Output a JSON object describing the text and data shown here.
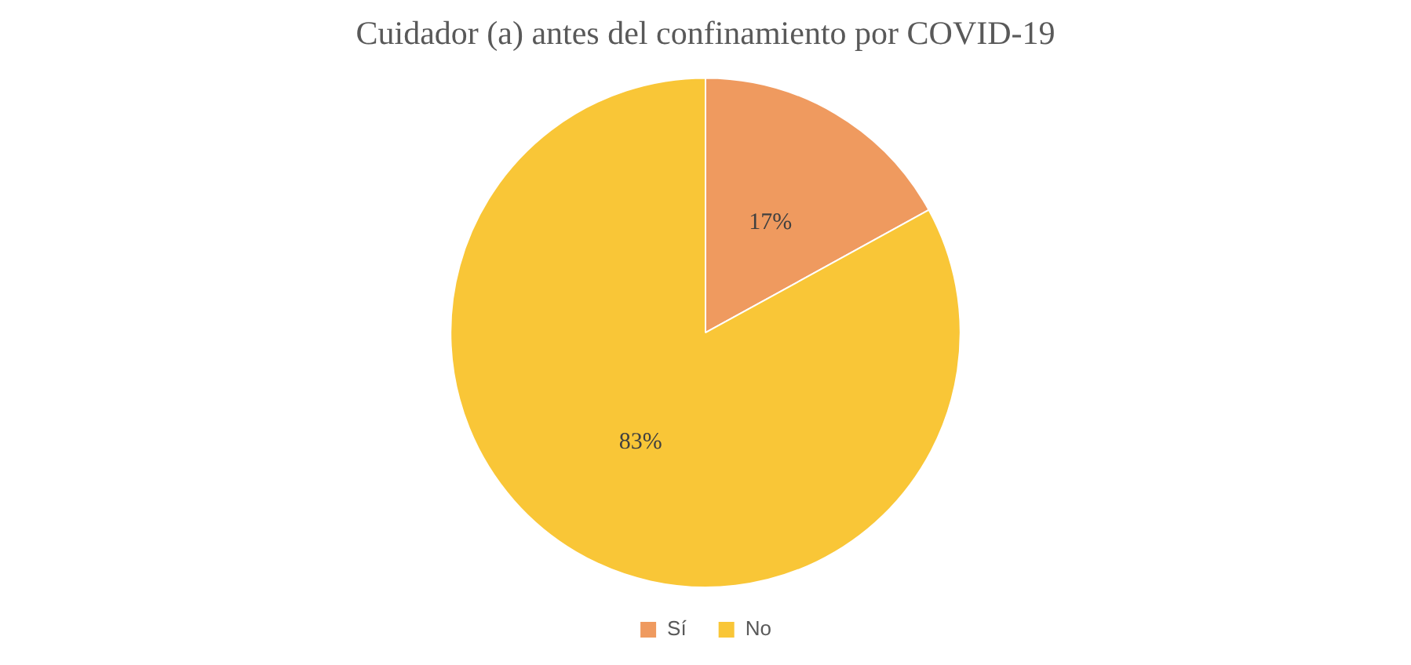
{
  "chart_data": {
    "type": "pie",
    "title": "Cuidador (a) antes del confinamiento por COVID-19",
    "categories": [
      "Sí",
      "No"
    ],
    "values": [
      17,
      83
    ],
    "colors": [
      "#ef9a5f",
      "#f9c637"
    ],
    "value_labels": [
      "17%",
      "83%"
    ],
    "legend": "bottom"
  }
}
